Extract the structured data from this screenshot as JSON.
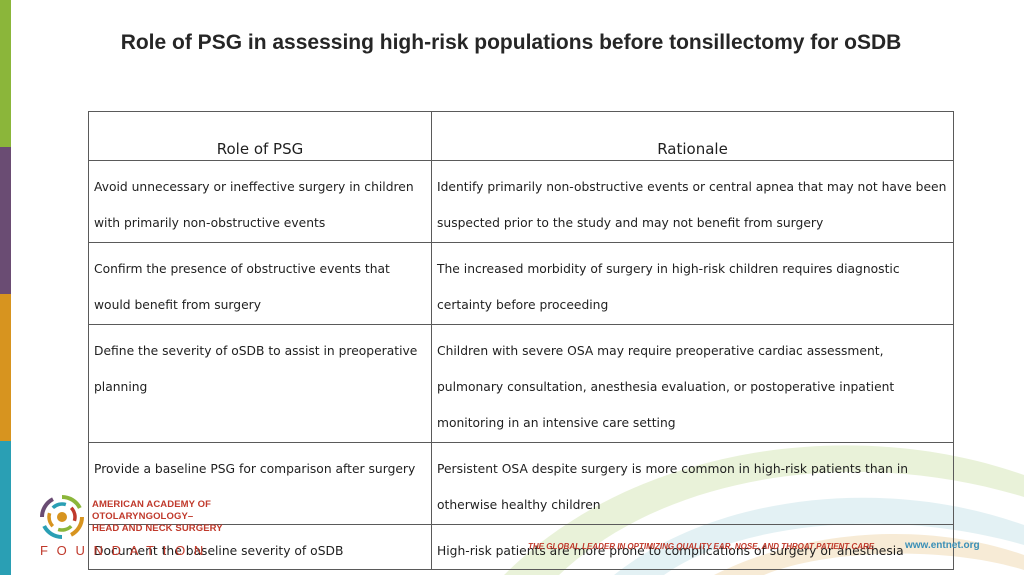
{
  "colors": {
    "stripes": [
      "#8bb63a",
      "#6a4c73",
      "#d7941f",
      "#2a9fb4"
    ],
    "org_red": "#c0392b",
    "url_blue": "#3a8fb7"
  },
  "title": "Role of PSG in assessing high-risk populations before tonsillectomy for oSDB",
  "table": {
    "headers": [
      "Role of PSG",
      "Rationale"
    ],
    "rows": [
      [
        "Avoid unnecessary or ineffective surgery in children with primarily non-obstructive events",
        "Identify primarily non-obstructive events or central apnea that may not have been suspected prior to the study and may not benefit from surgery"
      ],
      [
        "Confirm the presence of obstructive events that would benefit from surgery",
        "The increased morbidity of surgery in high-risk children requires diagnostic certainty before proceeding"
      ],
      [
        "Define the severity of oSDB to assist in preoperative planning",
        "Children with severe OSA may require preoperative cardiac assessment, pulmonary consultation, anesthesia evaluation, or postoperative inpatient monitoring in an intensive care setting"
      ],
      [
        "Provide a baseline PSG for comparison after surgery",
        "Persistent OSA despite surgery is more common in high-risk patients than in otherwise healthy children"
      ],
      [
        "Document the baseline severity of oSDB",
        "High-risk patients are more prone to complications of surgery or anesthesia"
      ]
    ]
  },
  "footer": {
    "org_lines": [
      "AMERICAN ACADEMY OF",
      "OTOLARYNGOLOGY–",
      "HEAD AND NECK SURGERY"
    ],
    "foundation": "FOUNDATION",
    "tagline": "THE GLOBAL LEADER IN OPTIMIZING QUALITY EAR, NOSE, AND THROAT PATIENT CARE",
    "url": "www.entnet.org",
    "logo_icon": "aao-hns-logo-icon"
  }
}
